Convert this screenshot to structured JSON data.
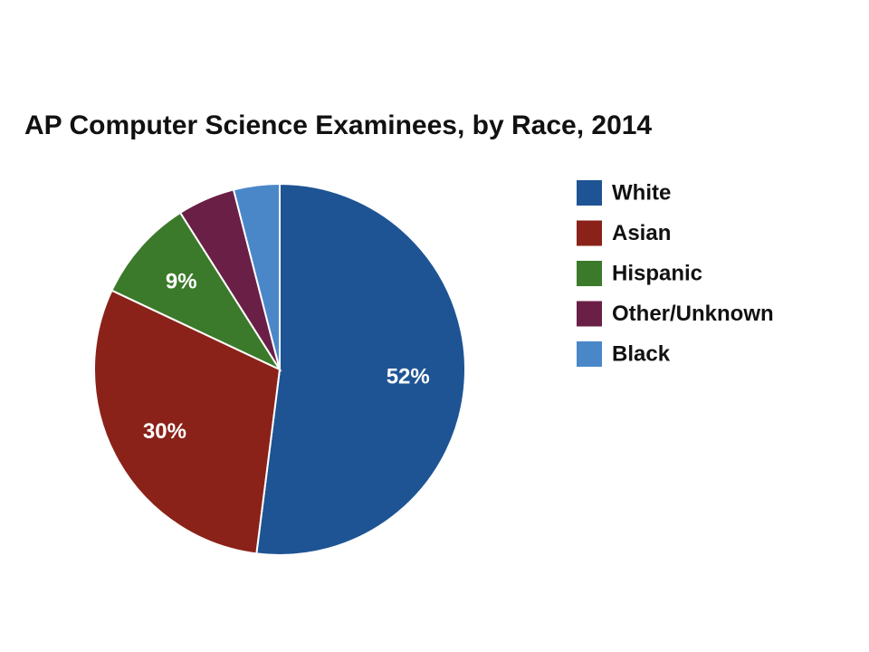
{
  "chart_data": {
    "type": "pie",
    "title": "AP Computer Science Examinees, by Race, 2014",
    "categories": [
      "White",
      "Asian",
      "Hispanic",
      "Other/Unknown",
      "Black"
    ],
    "values": [
      52,
      30,
      9,
      5,
      4
    ],
    "value_labels": [
      "52%",
      "30%",
      "9%",
      null,
      null
    ],
    "colors": [
      "#1e5493",
      "#8a2219",
      "#3c7a2b",
      "#6a1f46",
      "#4a87c9"
    ],
    "legend": "right"
  }
}
